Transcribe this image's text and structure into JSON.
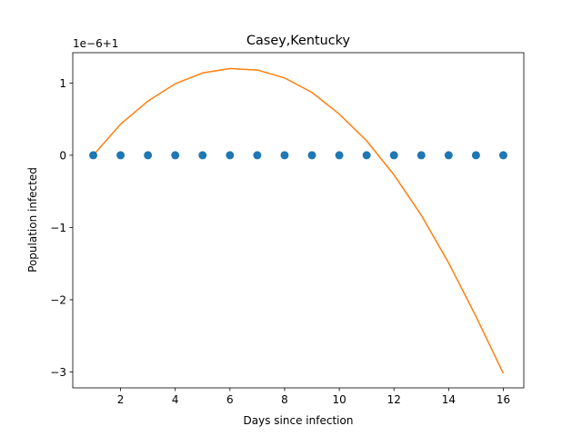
{
  "chart_data": {
    "type": "scatter",
    "title": "Casey,Kentucky",
    "xlabel": "Days since infection",
    "ylabel": "Population infected",
    "offset_text": "1e−6+1",
    "xlim": [
      0.25,
      16.75
    ],
    "ylim": [
      -3.22,
      1.42
    ],
    "xticks": [
      2,
      4,
      6,
      8,
      10,
      12,
      14,
      16
    ],
    "xtick_labels": [
      "2",
      "4",
      "6",
      "8",
      "10",
      "12",
      "14",
      "16"
    ],
    "yticks": [
      1,
      0,
      -1,
      -2,
      -3
    ],
    "ytick_labels": [
      "1",
      "0",
      "−1",
      "−2",
      "−3"
    ],
    "grid": false,
    "series": [
      {
        "type": "scatter",
        "color": "#1f77b4",
        "x": [
          1,
          2,
          3,
          4,
          5,
          6,
          7,
          8,
          9,
          10,
          11,
          12,
          13,
          14,
          15,
          16
        ],
        "y": [
          0,
          0,
          0,
          0,
          0,
          0,
          0,
          0,
          0,
          0,
          0,
          0,
          0,
          0,
          0,
          0
        ]
      },
      {
        "type": "line",
        "color": "#ff7f0e",
        "x": [
          1,
          2,
          3,
          4,
          5,
          6,
          7,
          8,
          9,
          10,
          11,
          12,
          13,
          14,
          15,
          16
        ],
        "y": [
          0.0,
          0.43,
          0.75,
          0.99,
          1.14,
          1.2,
          1.18,
          1.07,
          0.87,
          0.57,
          0.2,
          -0.27,
          -0.83,
          -1.49,
          -2.23,
          -3.02
        ]
      }
    ]
  }
}
